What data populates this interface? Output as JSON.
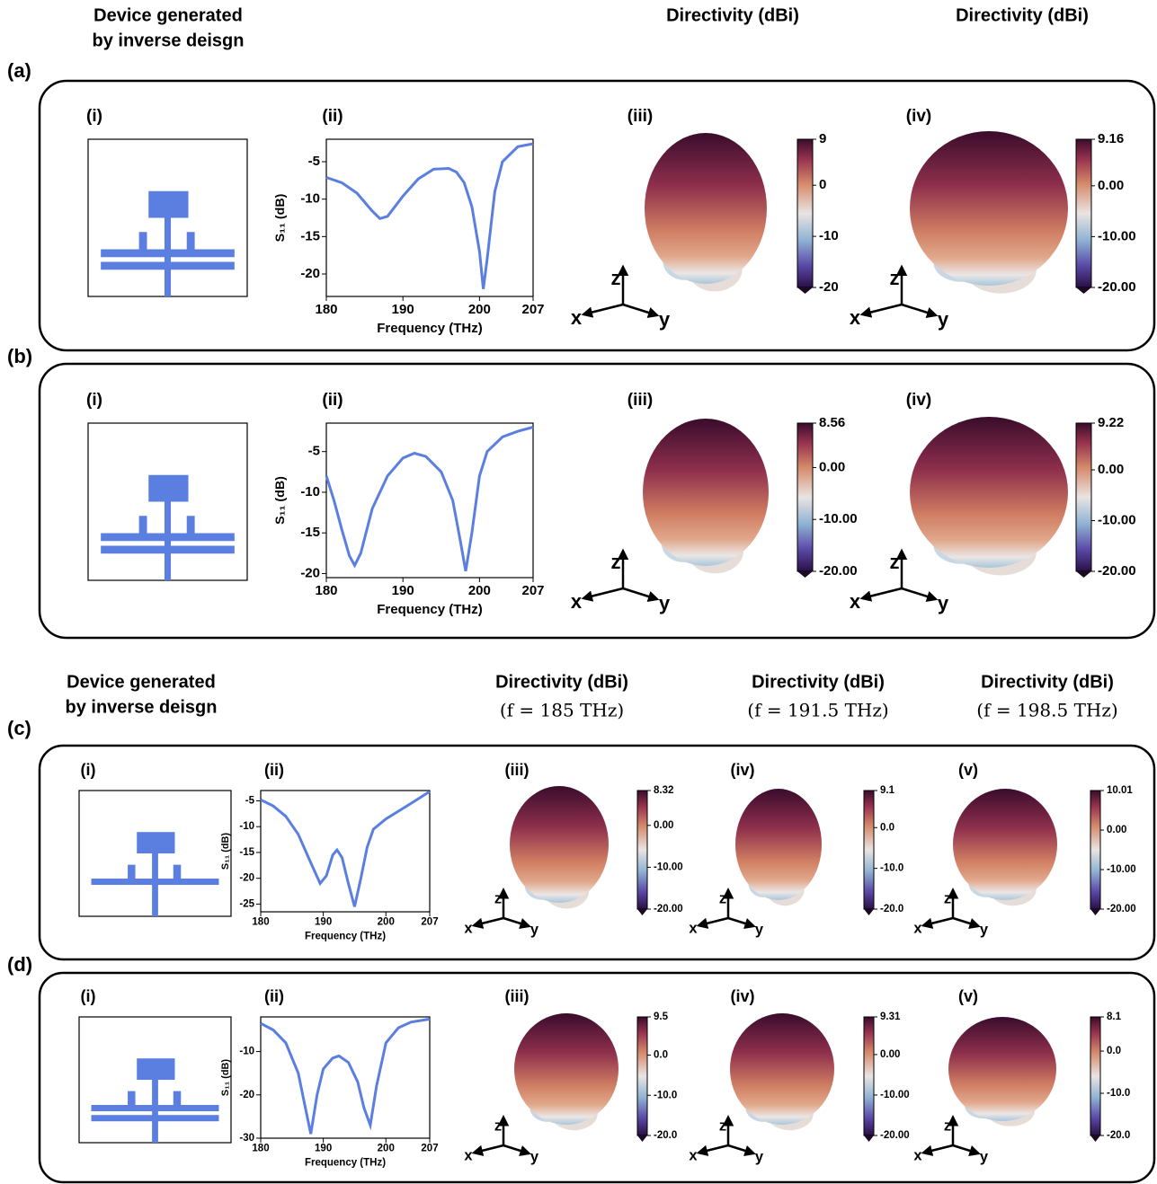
{
  "top_header": {
    "device": [
      "Device generated",
      "by inverse deisgn"
    ],
    "directivity": [
      "Directivity (dBi)",
      "Directivity (dBi)"
    ]
  },
  "bottom_header": {
    "device": [
      "Device generated",
      "by inverse deisgn"
    ],
    "directivity": [
      "Directivity (dBi)",
      "Directivity (dBi)",
      "Directivity (dBi)"
    ],
    "frequency": [
      "(f = 185 THz)",
      "(f = 191.5 THz)",
      "(f = 198.5 THz)"
    ]
  },
  "axis_names": {
    "x": "x",
    "y": "y",
    "z": "z"
  },
  "panels": [
    {
      "label": "(a)",
      "subpanels": [
        "(i)",
        "(ii)",
        "(iii)",
        "(iv)"
      ],
      "s11": {
        "type": "line",
        "xlabel": "Frequency (THz)",
        "ylabel": "S₁₁ (dB)",
        "color": "#5b7fe0",
        "x": [
          180,
          182,
          184,
          186,
          187,
          188,
          190,
          192,
          194,
          196,
          197,
          198,
          199,
          200,
          200.5,
          201,
          202,
          203,
          205,
          207
        ],
        "values": [
          -7.1,
          -7.8,
          -9.2,
          -11.6,
          -12.6,
          -12.3,
          -9.6,
          -7.3,
          -6.0,
          -5.9,
          -6.4,
          -7.8,
          -11,
          -17,
          -22,
          -18,
          -9,
          -5,
          -3,
          -2.6
        ],
        "xlim": [
          180,
          207
        ],
        "ylim": [
          -23,
          -2
        ],
        "xticks": [
          180,
          190,
          200,
          207
        ],
        "yticks": [
          -5,
          -10,
          -15,
          -20
        ]
      },
      "colorbars": [
        {
          "lim": [
            -20,
            9
          ],
          "ticks": [
            9,
            0,
            -10,
            -20
          ]
        },
        {
          "lim": [
            -20,
            9.16
          ],
          "ticks": [
            9.16,
            {
              "value": 0,
              "label": "0.00"
            },
            {
              "value": -10,
              "label": "-10.00"
            },
            {
              "value": -20,
              "label": "-20.00"
            }
          ]
        }
      ]
    },
    {
      "label": "(b)",
      "subpanels": [
        "(i)",
        "(ii)",
        "(iii)",
        "(iv)"
      ],
      "s11": {
        "type": "line",
        "xlabel": "Frequency (THz)",
        "ylabel": "S₁₁ (dB)",
        "color": "#5b7fe0",
        "x": [
          180,
          181,
          182,
          183,
          183.7,
          184.5,
          186,
          188,
          190,
          191.5,
          193,
          195,
          196.5,
          197.5,
          198.2,
          199,
          200,
          201,
          203,
          205,
          207
        ],
        "values": [
          -8,
          -11,
          -14.5,
          -17.8,
          -19,
          -17.5,
          -12,
          -8,
          -5.8,
          -5.2,
          -5.6,
          -7.5,
          -11,
          -16,
          -19.7,
          -15,
          -8,
          -5,
          -3.2,
          -2.5,
          -2
        ],
        "xlim": [
          180,
          207
        ],
        "ylim": [
          -20.5,
          -1.5
        ],
        "xticks": [
          180,
          190,
          200,
          207
        ],
        "yticks": [
          -5,
          -10,
          -15,
          -20
        ]
      },
      "colorbars": [
        {
          "lim": [
            -20,
            8.56
          ],
          "ticks": [
            8.56,
            {
              "value": 0,
              "label": "0.00"
            },
            {
              "value": -10,
              "label": "-10.00"
            },
            {
              "value": -20,
              "label": "-20.00"
            }
          ]
        },
        {
          "lim": [
            -20,
            9.22
          ],
          "ticks": [
            9.22,
            {
              "value": 0,
              "label": "0.00"
            },
            {
              "value": -10,
              "label": "-10.00"
            },
            {
              "value": -20,
              "label": "-20.00"
            }
          ]
        }
      ]
    },
    {
      "label": "(c)",
      "subpanels": [
        "(i)",
        "(ii)",
        "(iii)",
        "(iv)",
        "(v)"
      ],
      "s11": {
        "type": "line",
        "xlabel": "Frequency (THz)",
        "ylabel": "S₁₁ (dB)",
        "color": "#5b7fe0",
        "x": [
          180,
          182,
          184,
          186,
          188,
          189.5,
          190.5,
          191.5,
          192.2,
          193,
          194,
          195,
          196,
          197,
          198,
          200,
          202,
          204,
          207
        ],
        "values": [
          -4.8,
          -6,
          -8,
          -11.5,
          -17,
          -21,
          -19.5,
          -15.5,
          -14.5,
          -16,
          -21,
          -25.5,
          -20,
          -14,
          -10.5,
          -8.5,
          -7,
          -5.5,
          -3.2
        ],
        "xlim": [
          180,
          207
        ],
        "ylim": [
          -26.5,
          -3
        ],
        "xticks": [
          180,
          190,
          200,
          207
        ],
        "yticks": [
          -5,
          -10,
          -15,
          -20,
          -25
        ]
      },
      "colorbars": [
        {
          "lim": [
            -20,
            8.32
          ],
          "ticks": [
            8.32,
            {
              "value": 0,
              "label": "0.00"
            },
            {
              "value": -10,
              "label": "-10.00"
            },
            {
              "value": -20,
              "label": "-20.00"
            }
          ]
        },
        {
          "lim": [
            -20,
            9.1
          ],
          "ticks": [
            9.1,
            {
              "value": 0,
              "label": "0.0"
            },
            {
              "value": -10,
              "label": "-10.0"
            },
            {
              "value": -20,
              "label": "-20.0"
            }
          ]
        },
        {
          "lim": [
            -20,
            10.01
          ],
          "ticks": [
            10.01,
            {
              "value": 0,
              "label": "0.00"
            },
            {
              "value": -10,
              "label": "-10.00"
            },
            {
              "value": -20,
              "label": "-20.00"
            }
          ]
        }
      ]
    },
    {
      "label": "(d)",
      "subpanels": [
        "(i)",
        "(ii)",
        "(iii)",
        "(iv)",
        "(v)"
      ],
      "s11": {
        "type": "line",
        "xlabel": "Frequency (THz)",
        "ylabel": "S₁₁ (dB)",
        "color": "#5b7fe0",
        "x": [
          180,
          182,
          184,
          186,
          187,
          188,
          189,
          190,
          191.5,
          192.5,
          194,
          195.5,
          196.5,
          197.5,
          198.5,
          200,
          202,
          204,
          207
        ],
        "values": [
          -3.5,
          -5,
          -8,
          -15,
          -22,
          -29,
          -20,
          -14,
          -11.5,
          -11,
          -12.5,
          -17,
          -23,
          -27,
          -18,
          -8,
          -4.5,
          -3.2,
          -2.5
        ],
        "xlim": [
          180,
          207
        ],
        "ylim": [
          -30,
          -2
        ],
        "xticks": [
          180,
          190,
          200,
          207
        ],
        "yticks": [
          -10,
          -20,
          -30
        ]
      },
      "colorbars": [
        {
          "lim": [
            -20,
            9.5
          ],
          "ticks": [
            9.5,
            {
              "value": 0,
              "label": "0.0"
            },
            {
              "value": -10,
              "label": "-10.0"
            },
            {
              "value": -20,
              "label": "-20.0"
            }
          ]
        },
        {
          "lim": [
            -20,
            9.31
          ],
          "ticks": [
            9.31,
            {
              "value": 0,
              "label": "0.00"
            },
            {
              "value": -10,
              "label": "-10.00"
            },
            {
              "value": -20,
              "label": "-20.00"
            }
          ]
        },
        {
          "lim": [
            -20,
            8.1
          ],
          "ticks": [
            8.1,
            {
              "value": 0,
              "label": "0.0"
            },
            {
              "value": -10,
              "label": "-10.0"
            },
            {
              "value": -20,
              "label": "-20.0"
            }
          ]
        }
      ]
    }
  ]
}
